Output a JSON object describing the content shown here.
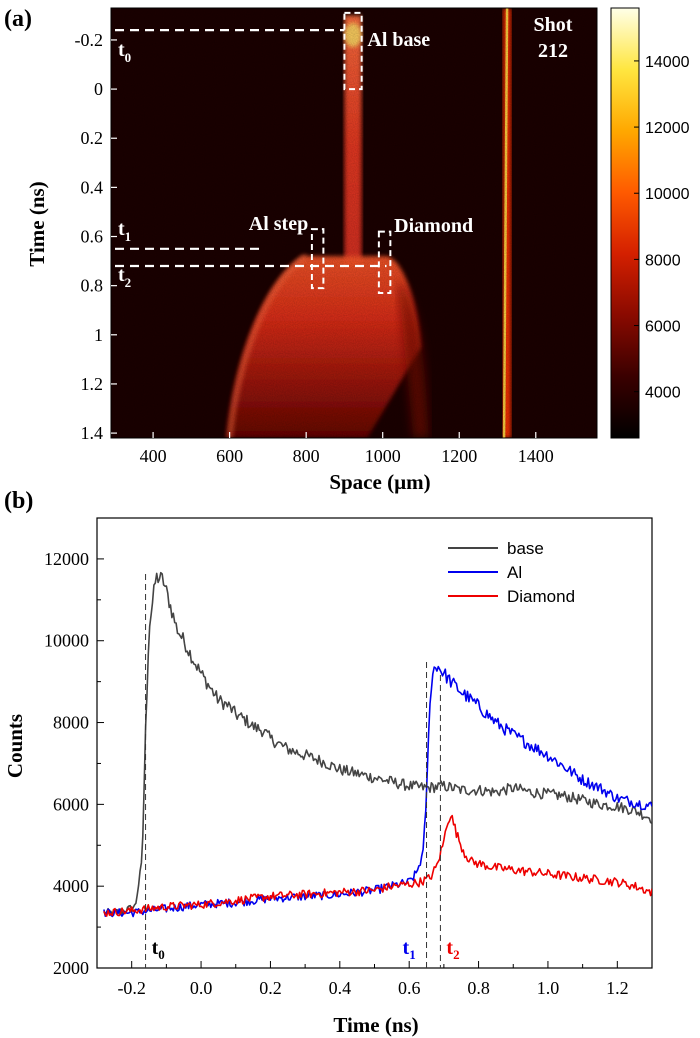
{
  "chart_data": [
    {
      "panel": "(a)",
      "type": "heatmap",
      "xlabel": "Space (µm)",
      "ylabel": "Time (ns)",
      "xlim": [
        290,
        1560
      ],
      "ylim": [
        -0.33,
        1.42
      ],
      "x_ticks": [
        "400",
        "600",
        "800",
        "1000",
        "1200",
        "1400"
      ],
      "y_ticks": [
        "-0.2",
        "0",
        "0.2",
        "0.4",
        "0.6",
        "0.8",
        "1",
        "1.2",
        "1.4"
      ],
      "y_tick_values": [
        -0.2,
        0,
        0.2,
        0.4,
        0.6,
        0.8,
        1.0,
        1.2,
        1.4
      ],
      "x_tick_values": [
        400,
        600,
        800,
        1000,
        1200,
        1400
      ],
      "colorbar": {
        "range": [
          2600,
          15600
        ],
        "ticks": [
          "4000",
          "6000",
          "8000",
          "10000",
          "12000",
          "14000"
        ],
        "tick_values": [
          4000,
          6000,
          8000,
          10000,
          12000,
          14000
        ],
        "colors": [
          "#000000",
          "#3a0000",
          "#8a0a00",
          "#d42000",
          "#ff5a00",
          "#ffa800",
          "#ffe640",
          "#ffffe8"
        ]
      },
      "annotations": {
        "al_base": "Al base",
        "al_step": "Al step",
        "diamond": "Diamond",
        "shot_line1": "Shot",
        "shot_line2": "212",
        "t0_main": "t",
        "t0_sub": "0",
        "t1_main": "t",
        "t1_sub": "1",
        "t2_main": "t",
        "t2_sub": "2"
      },
      "marker_times": {
        "t0": -0.24,
        "t1": 0.65,
        "t2": 0.72
      },
      "boxes": [
        {
          "name": "al-base-box",
          "x": [
            900,
            945
          ],
          "y": [
            -0.31,
            0.0
          ]
        },
        {
          "name": "al-step-box",
          "x": [
            815,
            845
          ],
          "y": [
            0.57,
            0.81
          ]
        },
        {
          "name": "diamond-box",
          "x": [
            990,
            1020
          ],
          "y": [
            0.58,
            0.83
          ]
        }
      ]
    },
    {
      "panel": "(b)",
      "type": "line",
      "xlabel": "Time (ns)",
      "ylabel": "Counts",
      "xlim": [
        -0.3,
        1.3
      ],
      "ylim": [
        2000,
        13000
      ],
      "x_ticks": [
        "-0.2",
        "0.0",
        "0.2",
        "0.4",
        "0.6",
        "0.8",
        "1.0",
        "1.2"
      ],
      "x_tick_values": [
        -0.2,
        0.0,
        0.2,
        0.4,
        0.6,
        0.8,
        1.0,
        1.2
      ],
      "y_ticks": [
        "2000",
        "4000",
        "6000",
        "8000",
        "10000",
        "12000"
      ],
      "y_tick_values": [
        2000,
        4000,
        6000,
        8000,
        10000,
        12000
      ],
      "legend_position": "top-right",
      "markers": [
        {
          "main": "t",
          "sub": "0",
          "x": -0.16,
          "color": "#000000"
        },
        {
          "main": "t",
          "sub": "1",
          "x": 0.65,
          "color": "#0000ee"
        },
        {
          "main": "t",
          "sub": "2",
          "x": 0.69,
          "color": "#ee0000"
        }
      ],
      "series": [
        {
          "name": "base",
          "color": "#444444",
          "x": [
            -0.28,
            -0.25,
            -0.22,
            -0.19,
            -0.17,
            -0.16,
            -0.15,
            -0.13,
            -0.11,
            -0.09,
            -0.07,
            -0.05,
            -0.02,
            0.0,
            0.03,
            0.05,
            0.08,
            0.1,
            0.13,
            0.15,
            0.18,
            0.2,
            0.25,
            0.3,
            0.35,
            0.4,
            0.45,
            0.5,
            0.55,
            0.6,
            0.65,
            0.7,
            0.75,
            0.8,
            0.85,
            0.9,
            0.95,
            1.0,
            1.05,
            1.1,
            1.15,
            1.2,
            1.25,
            1.3
          ],
          "y": [
            3350,
            3350,
            3400,
            3500,
            4600,
            7800,
            10300,
            11550,
            11500,
            10900,
            10300,
            10000,
            9500,
            9200,
            8800,
            8550,
            8400,
            8200,
            8050,
            7900,
            7800,
            7600,
            7350,
            7200,
            7050,
            6850,
            6750,
            6650,
            6550,
            6450,
            6400,
            6450,
            6350,
            6350,
            6300,
            6400,
            6300,
            6250,
            6200,
            6100,
            6000,
            5950,
            5850,
            5650
          ]
        },
        {
          "name": "Al",
          "color": "#0000ee",
          "x": [
            -0.28,
            -0.2,
            -0.1,
            0.0,
            0.1,
            0.2,
            0.3,
            0.4,
            0.5,
            0.55,
            0.6,
            0.62,
            0.64,
            0.65,
            0.66,
            0.67,
            0.68,
            0.7,
            0.72,
            0.75,
            0.8,
            0.85,
            0.9,
            0.95,
            1.0,
            1.05,
            1.1,
            1.15,
            1.2,
            1.25,
            1.3
          ],
          "y": [
            3350,
            3350,
            3450,
            3550,
            3600,
            3700,
            3750,
            3800,
            3900,
            4000,
            4100,
            4300,
            4800,
            6200,
            8600,
            9300,
            9400,
            9200,
            9000,
            8750,
            8400,
            8000,
            7700,
            7450,
            7200,
            6900,
            6600,
            6400,
            6150,
            6050,
            5950
          ]
        },
        {
          "name": "Diamond",
          "color": "#ee0000",
          "x": [
            -0.28,
            -0.2,
            -0.1,
            0.0,
            0.1,
            0.2,
            0.3,
            0.4,
            0.5,
            0.55,
            0.6,
            0.63,
            0.66,
            0.68,
            0.7,
            0.71,
            0.72,
            0.74,
            0.76,
            0.78,
            0.8,
            0.85,
            0.9,
            0.95,
            1.0,
            1.05,
            1.1,
            1.15,
            1.2,
            1.25,
            1.3
          ],
          "y": [
            3350,
            3400,
            3500,
            3550,
            3650,
            3750,
            3800,
            3850,
            3900,
            4000,
            4050,
            4100,
            4200,
            4500,
            5100,
            5600,
            5750,
            5200,
            4800,
            4600,
            4550,
            4450,
            4400,
            4350,
            4300,
            4250,
            4200,
            4150,
            4100,
            4000,
            3850
          ]
        }
      ]
    }
  ]
}
